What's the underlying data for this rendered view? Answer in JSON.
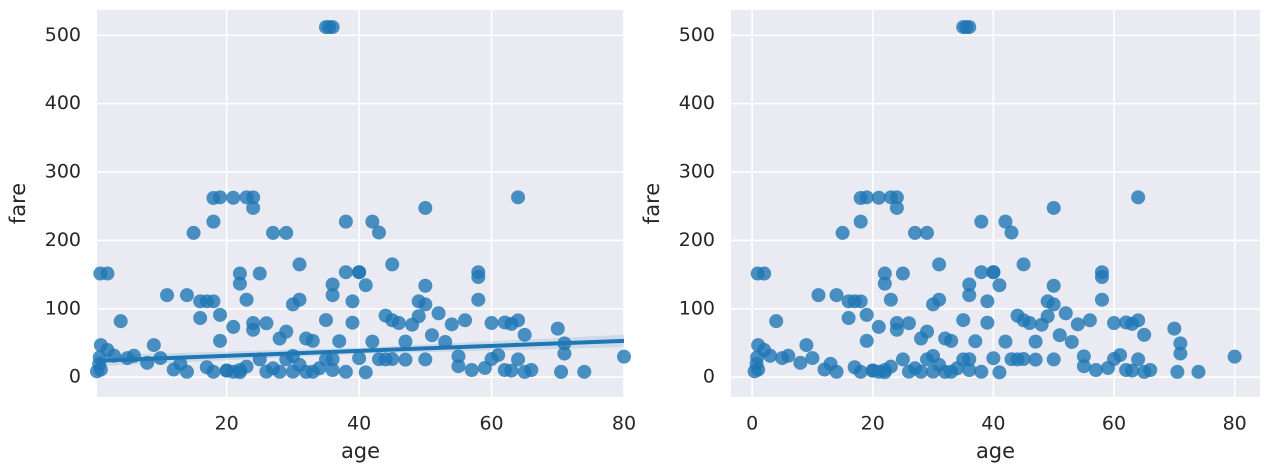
{
  "chart_data": [
    {
      "type": "scatter",
      "xlabel": "age",
      "ylabel": "fare",
      "x": [
        35,
        36,
        35.5,
        0.92,
        2,
        18,
        19,
        23,
        24,
        24,
        21,
        15,
        27,
        29,
        38,
        42,
        18,
        43,
        50,
        64,
        31,
        45,
        22,
        25,
        38,
        40,
        58,
        58,
        22,
        36,
        50,
        41,
        11,
        14,
        36,
        16,
        17,
        18,
        39,
        49,
        58,
        23,
        30,
        50,
        31,
        40,
        60,
        62,
        63,
        64,
        65,
        70,
        71,
        71,
        74,
        70.5,
        80,
        4,
        1,
        2,
        3,
        5,
        6,
        8,
        9,
        10,
        13,
        16,
        19,
        20,
        21,
        22,
        24,
        25,
        26,
        27,
        28,
        29,
        30,
        32,
        33,
        34,
        35,
        36,
        37,
        39,
        40,
        41,
        42,
        43,
        44,
        45,
        46,
        47,
        48,
        49,
        50,
        51,
        52,
        53,
        54,
        55,
        56,
        57,
        59,
        61,
        62,
        63,
        65,
        66,
        0.42,
        0.75,
        0.83,
        1,
        12,
        14,
        17,
        18,
        23,
        31,
        38,
        45,
        28,
        26,
        24,
        47,
        19,
        33,
        30,
        35,
        21,
        20,
        44,
        55,
        60,
        64,
        29,
        32,
        36,
        22
      ],
      "y": [
        512,
        512,
        512,
        151.55,
        151.55,
        262,
        263,
        263,
        263,
        247.5,
        262.4,
        211,
        211,
        211,
        227.5,
        227.5,
        227.5,
        211.5,
        247.5,
        263,
        164.9,
        164.9,
        151.55,
        151.55,
        153.5,
        153.5,
        153.5,
        146.5,
        136.8,
        135.6,
        133.7,
        134.5,
        120,
        120,
        120,
        110.9,
        110.9,
        110.9,
        110.9,
        110.9,
        113.3,
        113.3,
        106.4,
        106.4,
        113.3,
        153.5,
        79.2,
        80,
        77.9,
        83.1,
        61.9,
        71,
        49.5,
        34.6,
        7.8,
        7.75,
        30,
        81.9,
        46.9,
        39.7,
        31.3,
        27.9,
        31.3,
        21,
        46.9,
        27.9,
        19.5,
        86.5,
        91.1,
        9.5,
        7.9,
        7.25,
        79.2,
        26,
        8.05,
        13,
        7.9,
        26,
        8.05,
        56.5,
        7.9,
        13,
        83.5,
        26.3,
        52.6,
        79.65,
        27.7,
        7.1,
        52,
        26.3,
        90,
        83.2,
        79.2,
        52,
        76.7,
        89.1,
        26,
        61.4,
        93.5,
        51.5,
        77.3,
        30.5,
        83.2,
        10.5,
        13.5,
        32.3,
        10.5,
        9.6,
        7.75,
        10.5,
        8.5,
        19.3,
        29,
        11.1,
        11.2,
        7.85,
        14.5,
        7.8,
        15.5,
        18,
        7.9,
        26.55,
        56.5,
        78.85,
        69.3,
        25.6,
        53.1,
        53.1,
        31,
        26,
        73.5,
        9.8,
        26,
        16,
        26.55,
        26,
        66.6,
        7.75,
        10.5,
        10.5
      ],
      "color": "#1f77b4",
      "regression": {
        "x": [
          0.42,
          40,
          80
        ],
        "y": [
          24,
          38.5,
          53
        ],
        "lower": [
          16,
          34,
          44
        ],
        "upper": [
          32,
          43,
          62
        ]
      },
      "xlim": [
        0.42,
        80
      ],
      "ylim": [
        -29,
        537
      ],
      "xticks": [
        20,
        40,
        60,
        80
      ],
      "yticks": [
        0,
        100,
        200,
        300,
        400,
        500
      ],
      "grid": true
    },
    {
      "type": "scatter",
      "xlabel": "age",
      "ylabel": "fare",
      "x": [
        35,
        36,
        35.5,
        0.92,
        2,
        18,
        19,
        23,
        24,
        24,
        21,
        15,
        27,
        29,
        38,
        42,
        18,
        43,
        50,
        64,
        31,
        45,
        22,
        25,
        38,
        40,
        58,
        58,
        22,
        36,
        50,
        41,
        11,
        14,
        36,
        16,
        17,
        18,
        39,
        49,
        58,
        23,
        30,
        50,
        31,
        40,
        60,
        62,
        63,
        64,
        65,
        70,
        71,
        71,
        74,
        70.5,
        80,
        4,
        1,
        2,
        3,
        5,
        6,
        8,
        9,
        10,
        13,
        16,
        19,
        20,
        21,
        22,
        24,
        25,
        26,
        27,
        28,
        29,
        30,
        32,
        33,
        34,
        35,
        36,
        37,
        39,
        40,
        41,
        42,
        43,
        44,
        45,
        46,
        47,
        48,
        49,
        50,
        51,
        52,
        53,
        54,
        55,
        56,
        57,
        59,
        61,
        62,
        63,
        65,
        66,
        0.42,
        0.75,
        0.83,
        1,
        12,
        14,
        17,
        18,
        23,
        31,
        38,
        45,
        28,
        26,
        24,
        47,
        19,
        33,
        30,
        35,
        21,
        20,
        44,
        55,
        60,
        64,
        29,
        32,
        36,
        22
      ],
      "y": [
        512,
        512,
        512,
        151.55,
        151.55,
        262,
        263,
        263,
        263,
        247.5,
        262.4,
        211,
        211,
        211,
        227.5,
        227.5,
        227.5,
        211.5,
        247.5,
        263,
        164.9,
        164.9,
        151.55,
        151.55,
        153.5,
        153.5,
        153.5,
        146.5,
        136.8,
        135.6,
        133.7,
        134.5,
        120,
        120,
        120,
        110.9,
        110.9,
        110.9,
        110.9,
        110.9,
        113.3,
        113.3,
        106.4,
        106.4,
        113.3,
        153.5,
        79.2,
        80,
        77.9,
        83.1,
        61.9,
        71,
        49.5,
        34.6,
        7.8,
        7.75,
        30,
        81.9,
        46.9,
        39.7,
        31.3,
        27.9,
        31.3,
        21,
        46.9,
        27.9,
        19.5,
        86.5,
        91.1,
        9.5,
        7.9,
        7.25,
        79.2,
        26,
        8.05,
        13,
        7.9,
        26,
        8.05,
        56.5,
        7.9,
        13,
        83.5,
        26.3,
        52.6,
        79.65,
        27.7,
        7.1,
        52,
        26.3,
        90,
        83.2,
        79.2,
        52,
        76.7,
        89.1,
        26,
        61.4,
        93.5,
        51.5,
        77.3,
        30.5,
        83.2,
        10.5,
        13.5,
        32.3,
        10.5,
        9.6,
        7.75,
        10.5,
        8.5,
        19.3,
        29,
        11.1,
        11.2,
        7.85,
        14.5,
        7.8,
        15.5,
        18,
        7.9,
        26.55,
        56.5,
        78.85,
        69.3,
        25.6,
        53.1,
        53.1,
        31,
        26,
        73.5,
        9.8,
        26,
        16,
        26.55,
        26,
        66.6,
        7.75,
        10.5,
        10.5
      ],
      "color": "#1f77b4",
      "xlim": [
        -3.5,
        84.2
      ],
      "ylim": [
        -29,
        537
      ],
      "xticks": [
        0,
        20,
        40,
        60,
        80
      ],
      "yticks": [
        0,
        100,
        200,
        300,
        400,
        500
      ],
      "grid": true
    }
  ]
}
